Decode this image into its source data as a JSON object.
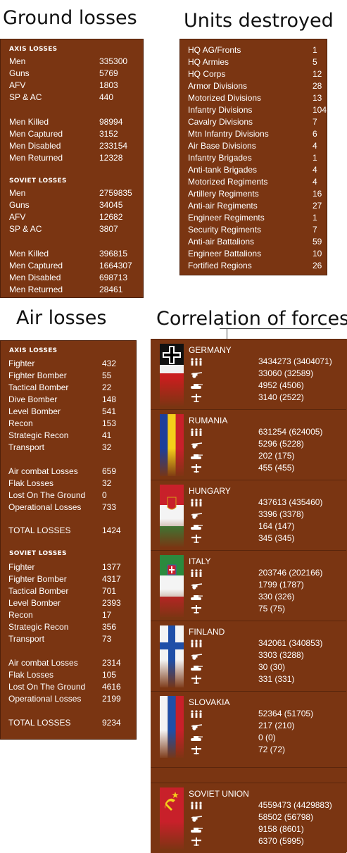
{
  "headings": {
    "ground": "Ground losses",
    "units": "Units destroyed",
    "air": "Air losses",
    "correlation": "Correlation of forces"
  },
  "ground_losses": {
    "axis_title": "AXIS LOSSES",
    "soviet_title": "SOVIET LOSSES",
    "axis": [
      {
        "label": "Men",
        "value": "335300"
      },
      {
        "label": "Guns",
        "value": "5769"
      },
      {
        "label": "AFV",
        "value": "1803"
      },
      {
        "label": "SP & AC",
        "value": "440"
      },
      {
        "label": "Men Killed",
        "value": "98994"
      },
      {
        "label": "Men Captured",
        "value": "3152"
      },
      {
        "label": "Men Disabled",
        "value": "233154"
      },
      {
        "label": "Men Returned",
        "value": "12328"
      }
    ],
    "soviet": [
      {
        "label": "Men",
        "value": "2759835"
      },
      {
        "label": "Guns",
        "value": "34045"
      },
      {
        "label": "AFV",
        "value": "12682"
      },
      {
        "label": "SP & AC",
        "value": "3807"
      },
      {
        "label": "Men Killed",
        "value": "396815"
      },
      {
        "label": "Men Captured",
        "value": "1664307"
      },
      {
        "label": "Men Disabled",
        "value": "698713"
      },
      {
        "label": "Men Returned",
        "value": "28461"
      }
    ]
  },
  "units_destroyed": [
    {
      "label": "HQ AG/Fronts",
      "value": "1"
    },
    {
      "label": "HQ Armies",
      "value": "5"
    },
    {
      "label": "HQ Corps",
      "value": "12"
    },
    {
      "label": "Armor Divisions",
      "value": "28"
    },
    {
      "label": "Motorized Divisions",
      "value": "13"
    },
    {
      "label": "Infantry Divisions",
      "value": "104"
    },
    {
      "label": "Cavalry Divisions",
      "value": "7"
    },
    {
      "label": "Mtn Infantry Divisions",
      "value": "6"
    },
    {
      "label": "Air Base Divisions",
      "value": "4"
    },
    {
      "label": "Infantry Brigades",
      "value": "1"
    },
    {
      "label": "Anti-tank Brigades",
      "value": "4"
    },
    {
      "label": "Motorized Regiments",
      "value": "4"
    },
    {
      "label": "Artillery Regiments",
      "value": "16"
    },
    {
      "label": "Anti-air Regiments",
      "value": "27"
    },
    {
      "label": "Engineer Regiments",
      "value": "1"
    },
    {
      "label": "Security Regiments",
      "value": "7"
    },
    {
      "label": "Anti-air Battalions",
      "value": "59"
    },
    {
      "label": "Engineer Battalions",
      "value": "10"
    },
    {
      "label": "Fortified Regions",
      "value": "26"
    }
  ],
  "air_losses": {
    "axis_title": "AXIS LOSSES",
    "soviet_title": "SOVIET LOSSES",
    "axis": [
      {
        "label": "Fighter",
        "value": "432"
      },
      {
        "label": "Fighter Bomber",
        "value": "55"
      },
      {
        "label": "Tactical Bomber",
        "value": "22"
      },
      {
        "label": "Dive Bomber",
        "value": "148"
      },
      {
        "label": "Level Bomber",
        "value": "541"
      },
      {
        "label": "Recon",
        "value": "153"
      },
      {
        "label": "Strategic Recon",
        "value": "41"
      },
      {
        "label": "Transport",
        "value": "32"
      },
      {
        "label": "Air combat Losses",
        "value": "659"
      },
      {
        "label": "Flak Losses",
        "value": "32"
      },
      {
        "label": "Lost On The Ground",
        "value": "0"
      },
      {
        "label": "Operational Losses",
        "value": "733"
      },
      {
        "label": "TOTAL LOSSES",
        "value": "1424"
      }
    ],
    "soviet": [
      {
        "label": "Fighter",
        "value": "1377"
      },
      {
        "label": "Fighter Bomber",
        "value": "4317"
      },
      {
        "label": "Tactical Bomber",
        "value": "701"
      },
      {
        "label": "Level Bomber",
        "value": "2393"
      },
      {
        "label": "Recon",
        "value": "17"
      },
      {
        "label": "Strategic Recon",
        "value": "356"
      },
      {
        "label": "Transport",
        "value": "73"
      },
      {
        "label": "Air combat Losses",
        "value": "2314"
      },
      {
        "label": "Flak Losses",
        "value": "105"
      },
      {
        "label": "Lost On The Ground",
        "value": "4616"
      },
      {
        "label": "Operational Losses",
        "value": "2199"
      },
      {
        "label": "TOTAL LOSSES",
        "value": "9234"
      }
    ]
  },
  "correlation": {
    "icons": [
      "infantry-icon",
      "artillery-icon",
      "tank-icon",
      "aircraft-icon"
    ],
    "nations": [
      {
        "name": "GERMANY",
        "flag": "germany-flag",
        "values": [
          "3434273 (3404071)",
          "33060 (32589)",
          "4952 (4506)",
          "3140 (2522)"
        ]
      },
      {
        "name": "RUMANIA",
        "flag": "rumania-flag",
        "values": [
          "631254 (624005)",
          "5296 (5228)",
          "202 (175)",
          "455 (455)"
        ]
      },
      {
        "name": "HUNGARY",
        "flag": "hungary-flag",
        "values": [
          "437613 (435460)",
          "3396 (3378)",
          "164 (147)",
          "345 (345)"
        ]
      },
      {
        "name": "ITALY",
        "flag": "italy-flag",
        "values": [
          "203746 (202166)",
          "1799 (1787)",
          "330 (326)",
          "75 (75)"
        ]
      },
      {
        "name": "FINLAND",
        "flag": "finland-flag",
        "values": [
          "342061 (340853)",
          "3303 (3288)",
          "30 (30)",
          "331 (331)"
        ]
      },
      {
        "name": "SLOVAKIA",
        "flag": "slovakia-flag",
        "values": [
          "52364 (51705)",
          "217 (210)",
          "0 (0)",
          "72 (72)"
        ]
      },
      {
        "name": "SOVIET UNION",
        "flag": "soviet-flag",
        "values": [
          "4559473 (4429883)",
          "58502 (56798)",
          "9158 (8601)",
          "6370 (5995)"
        ]
      }
    ]
  },
  "colors": {
    "panel": "#7a3512",
    "text": "#ffffff"
  }
}
